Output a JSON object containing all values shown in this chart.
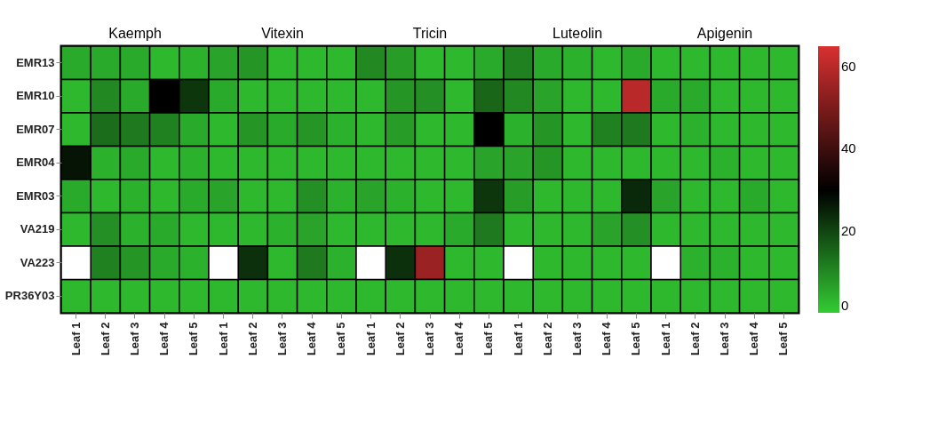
{
  "chart_data": {
    "type": "heatmap",
    "annotations": [
      "Kaemph",
      "Vitexin",
      "Tricin",
      "Luteolin",
      "Apigenin"
    ],
    "categories": [
      "Leaf 1",
      "Leaf 2",
      "Leaf 3",
      "Leaf 4",
      "Leaf 5",
      "Leaf 1",
      "Leaf 2",
      "Leaf 3",
      "Leaf 4",
      "Leaf 5",
      "Leaf 1",
      "Leaf 2",
      "Leaf 3",
      "Leaf 4",
      "Leaf 5",
      "Leaf 1",
      "Leaf 2",
      "Leaf 3",
      "Leaf 4",
      "Leaf 5",
      "Leaf 1",
      "Leaf 2",
      "Leaf 3",
      "Leaf 4",
      "Leaf 5"
    ],
    "y_categories": [
      "EMR13",
      "EMR10",
      "EMR07",
      "EMR04",
      "EMR03",
      "VA219",
      "VA223",
      "PR36Y03"
    ],
    "clim": [
      0,
      65
    ],
    "cticks": [
      0,
      20,
      40,
      60
    ],
    "cells": [
      [
        5,
        5,
        5,
        3,
        4,
        6,
        8,
        3,
        3,
        3,
        10,
        7,
        3,
        3,
        5,
        11,
        5,
        4,
        3,
        5,
        3,
        3,
        3,
        3,
        3
      ],
      [
        3,
        10,
        5,
        30,
        22,
        5,
        3,
        3,
        3,
        3,
        3,
        8,
        9,
        3,
        15,
        10,
        6,
        3,
        3,
        60,
        5,
        5,
        3,
        3,
        3
      ],
      [
        3,
        14,
        12,
        11,
        5,
        3,
        8,
        5,
        8,
        4,
        3,
        7,
        3,
        3,
        30,
        4,
        8,
        3,
        11,
        12,
        3,
        4,
        3,
        3,
        3
      ],
      [
        27,
        4,
        5,
        3,
        4,
        3,
        3,
        3,
        3,
        3,
        3,
        3,
        3,
        3,
        6,
        6,
        8,
        3,
        3,
        3,
        3,
        3,
        4,
        3,
        3
      ],
      [
        5,
        3,
        4,
        3,
        5,
        6,
        3,
        3,
        9,
        4,
        6,
        4,
        3,
        3,
        22,
        7,
        3,
        3,
        3,
        24,
        6,
        3,
        3,
        5,
        3
      ],
      [
        3,
        9,
        4,
        5,
        3,
        3,
        3,
        4,
        6,
        3,
        3,
        3,
        3,
        5,
        12,
        3,
        3,
        3,
        6,
        9,
        3,
        3,
        3,
        3,
        3
      ],
      [
        null,
        11,
        8,
        5,
        4,
        null,
        23,
        3,
        12,
        4,
        null,
        23,
        55,
        3,
        3,
        null,
        3,
        3,
        3,
        3,
        null,
        4,
        4,
        3,
        3
      ],
      [
        3,
        3,
        3,
        3,
        3,
        3,
        3,
        3,
        3,
        3,
        3,
        3,
        3,
        3,
        3,
        3,
        3,
        3,
        3,
        3,
        3,
        3,
        3,
        3,
        3
      ]
    ]
  }
}
